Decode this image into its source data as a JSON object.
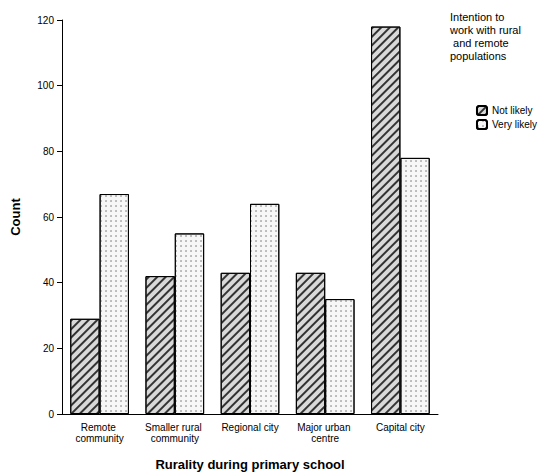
{
  "chart_data": {
    "type": "bar",
    "x_label": "Rurality during primary school",
    "y_label": "Count",
    "legend_title": "Intention to work with rural and remote populations",
    "categories": [
      "Remote community",
      "Smaller rural community",
      "Regional city",
      "Major urban centre",
      "Capital city"
    ],
    "series": [
      {
        "name": "Not likely",
        "color": "#d9d9d9",
        "values": [
          29,
          42,
          43,
          43,
          118
        ]
      },
      {
        "name": "Very likely",
        "color": "#f7f7f7",
        "values": [
          67,
          55,
          64,
          35,
          78
        ]
      }
    ],
    "ylim": [
      0,
      120
    ],
    "yticks": [
      0,
      20,
      40,
      60,
      80,
      100,
      120
    ],
    "grid": false,
    "legend": "right"
  }
}
